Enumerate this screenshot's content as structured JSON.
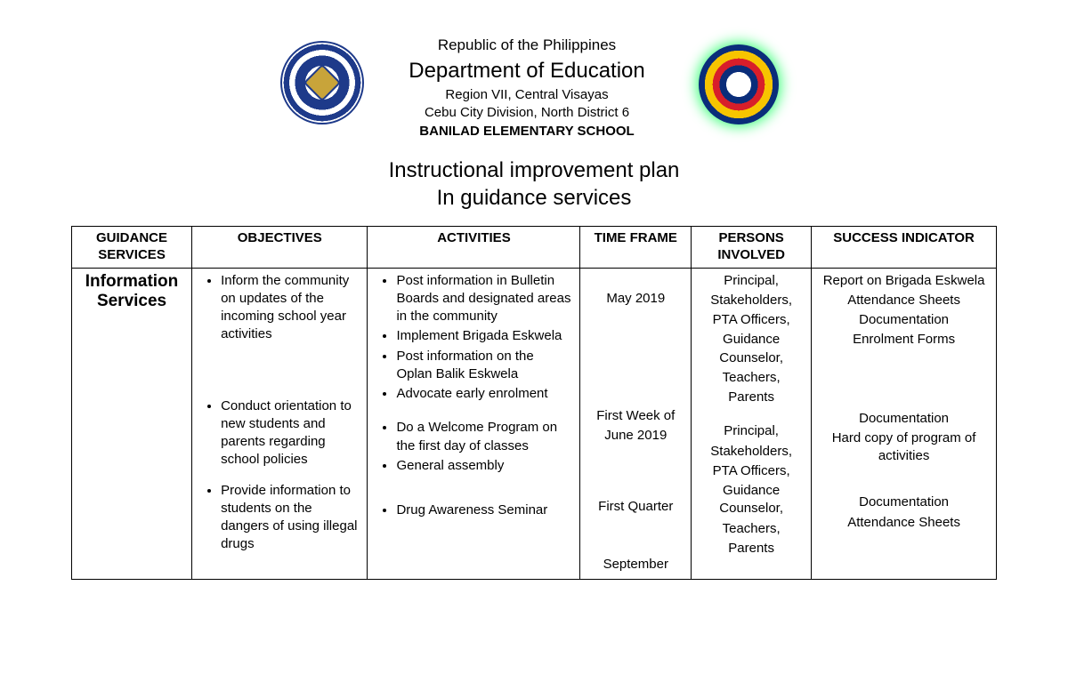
{
  "header": {
    "republic": "Republic of the Philippines",
    "department": "Department of Education",
    "region": "Region VII, Central Visayas",
    "division": "Cebu City Division, North District 6",
    "school": "BANILAD ELEMENTARY SCHOOL"
  },
  "title": {
    "line1": "Instructional improvement plan",
    "line2": "In guidance services"
  },
  "table": {
    "columns": {
      "services": "GUIDANCE SERVICES",
      "objectives": "OBJECTIVES",
      "activities": "ACTIVITIES",
      "time": "TIME FRAME",
      "persons": "PERSONS INVOLVED",
      "success": "SUCCESS INDICATOR"
    },
    "service_label": "Information Services",
    "rows": [
      {
        "objectives": [
          "Inform the community on updates of the incoming school year activities"
        ],
        "activities": [
          "Post information in Bulletin Boards and designated areas in the community",
          "Implement Brigada Eskwela",
          "Post information on the Oplan Balik Eskwela",
          "Advocate early enrolment"
        ],
        "time": "May 2019",
        "persons": "Principal, Stakeholders, PTA Officers, Guidance Counselor, Teachers, Parents",
        "success": [
          "Report on Brigada Eskwela",
          "Attendance Sheets",
          "Documentation",
          "Enrolment Forms"
        ]
      },
      {
        "objectives": [
          "Conduct orientation to new students and parents regarding school policies"
        ],
        "activities": [
          "Do a Welcome Program on the first day of classes",
          " General assembly"
        ],
        "time": "First Week of June 2019",
        "persons": "Principal, Stakeholders, PTA Officers, Guidance Counselor, Teachers, Parents",
        "success": [
          "Documentation",
          "Hard copy of program of activities"
        ]
      },
      {
        "objectives": [
          "Provide information to students on the dangers of using illegal drugs"
        ],
        "activities": [
          "Drug Awareness Seminar"
        ],
        "time": "First Quarter",
        "persons": "",
        "success": [
          "Documentation",
          "Attendance Sheets"
        ]
      }
    ],
    "trailing_time": "September"
  },
  "style": {
    "page_bg": "#ffffff",
    "text_color": "#000000",
    "border_color": "#000000",
    "body_font_size": 15,
    "header_dept_font_size": 24,
    "title_font_size": 24,
    "service_font_size": 19
  }
}
